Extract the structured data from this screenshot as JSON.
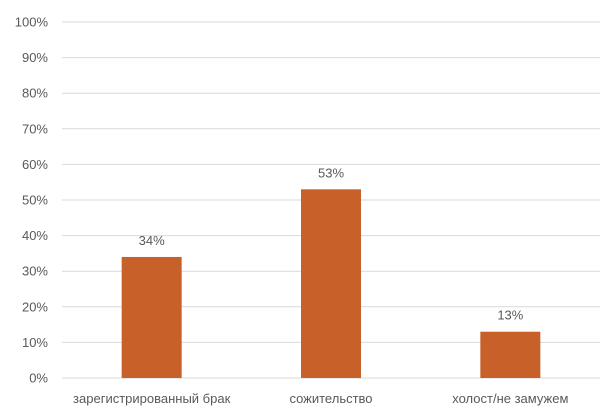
{
  "chart_data": {
    "type": "bar",
    "categories": [
      "зарегистрированный брак",
      "сожительство",
      "холост/не замужем"
    ],
    "values": [
      34,
      53,
      13
    ],
    "data_labels": [
      "34%",
      "53%",
      "13%"
    ],
    "y_ticks": [
      "0%",
      "10%",
      "20%",
      "30%",
      "40%",
      "50%",
      "60%",
      "70%",
      "80%",
      "90%",
      "100%"
    ],
    "ylim": [
      0,
      100
    ],
    "grid": true,
    "legend": "none",
    "colors": {
      "bar": "#C8602A",
      "gridline": "#D9D9D9",
      "text": "#595959"
    }
  }
}
